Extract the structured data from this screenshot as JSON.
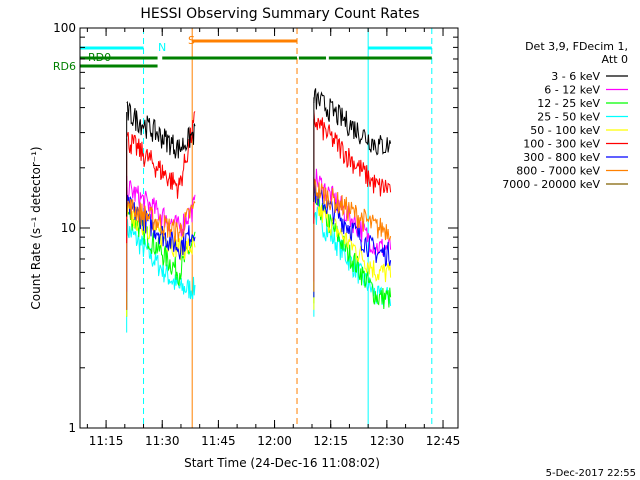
{
  "chart_data": {
    "type": "line",
    "title": "HESSI Observing Summary Count Rates",
    "xlabel": "Start Time (24-Dec-16 11:08:02)",
    "ylabel": "Count Rate (s⁻¹ detector⁻¹)",
    "xlim": [
      "11:08:02",
      "12:49:00"
    ],
    "ylim": [
      1,
      100
    ],
    "yscale": "log",
    "x_ticks": [
      "11:15",
      "11:30",
      "11:45",
      "12:00",
      "12:15",
      "12:30",
      "12:45"
    ],
    "y_ticks": [
      "1",
      "10",
      "100"
    ],
    "legend_header": [
      "Det 3,9, FDecim 1,",
      "Att 0"
    ],
    "legend_position": "right",
    "timestamp": "5-Dec-2017 22:55",
    "series": [
      {
        "name": "3 - 6 keV",
        "color": "#000000",
        "seg1": [
          38,
          25,
          30
        ],
        "seg2": [
          45,
          26,
          26
        ]
      },
      {
        "name": "6 - 12 keV",
        "color": "#ff00ff",
        "seg1": [
          16,
          10,
          13
        ],
        "seg2": [
          18,
          8,
          8
        ]
      },
      {
        "name": "12 - 25 keV",
        "color": "#00ff00",
        "seg1": [
          12,
          6,
          9
        ],
        "seg2": [
          14,
          4.5,
          4.5
        ]
      },
      {
        "name": "25 - 50 keV",
        "color": "#00ffff",
        "seg1": [
          10,
          5,
          5
        ],
        "seg2": [
          12,
          4.5,
          4.5
        ]
      },
      {
        "name": "50 - 100 keV",
        "color": "#ffff00",
        "seg1": [
          12,
          8,
          8
        ],
        "seg2": [
          13,
          6,
          6
        ]
      },
      {
        "name": "100 - 300 keV",
        "color": "#ff0000",
        "seg1": [
          28,
          16,
          35
        ],
        "seg2": [
          35,
          16,
          16
        ]
      },
      {
        "name": "300 - 800 keV",
        "color": "#0000ff",
        "seg1": [
          13,
          8,
          10
        ],
        "seg2": [
          15,
          7.5,
          7.5
        ]
      },
      {
        "name": "800 - 7000 keV",
        "color": "#ff8000",
        "seg1": [
          13,
          9.5,
          13
        ],
        "seg2": [
          16,
          10,
          10
        ]
      },
      {
        "name": "7000 - 20000 keV",
        "color": "#806000",
        "seg1": [],
        "seg2": []
      }
    ],
    "segment_times": {
      "seg1": [
        "11:20:30",
        "11:34:30",
        "11:38:45"
      ],
      "seg2": [
        "12:10:30",
        "12:27:30",
        "12:31:00"
      ]
    },
    "vlines": [
      {
        "time": "11:25:00",
        "color": "#00ffff",
        "style": "dashed"
      },
      {
        "time": "11:38:00",
        "color": "#ff8000",
        "style": "solid"
      },
      {
        "time": "12:06:00",
        "color": "#ff8000",
        "style": "dashed"
      },
      {
        "time": "12:25:00",
        "color": "#00ffff",
        "style": "solid"
      },
      {
        "time": "12:42:00",
        "color": "#00ffff",
        "style": "dashed"
      }
    ],
    "flags": [
      {
        "label": "N",
        "color": "#00ffff",
        "intervals": [
          [
            "11:08:02",
            "11:25:00"
          ],
          [
            "12:25:00",
            "12:42:00"
          ]
        ]
      },
      {
        "label": "S",
        "color": "#ff8000",
        "intervals": [
          [
            "11:38:00",
            "12:06:00"
          ]
        ]
      },
      {
        "label": "RD0",
        "color": "#008000",
        "intervals": [
          [
            "11:08:02",
            "11:28:45"
          ],
          [
            "11:30:00",
            "12:06:00"
          ],
          [
            "12:06:30",
            "12:13:45"
          ],
          [
            "12:14:30",
            "12:42:00"
          ]
        ]
      },
      {
        "label": "RD6",
        "color": "#008000",
        "intervals": []
      }
    ]
  }
}
